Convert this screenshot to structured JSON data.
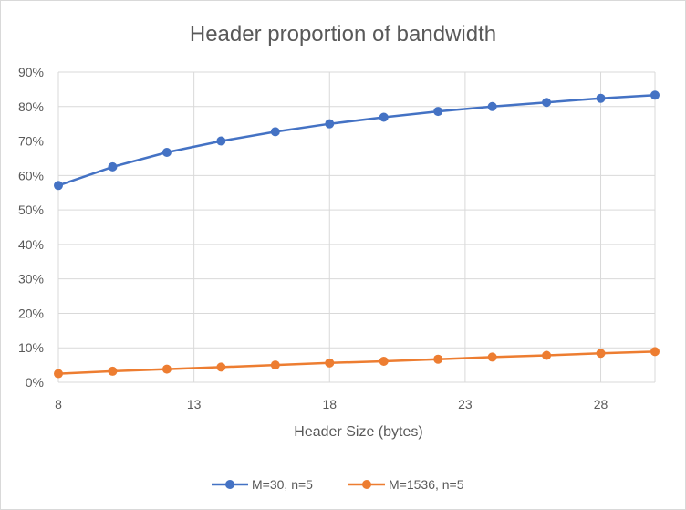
{
  "chart_data": {
    "type": "line",
    "title": "Header proportion of bandwidth",
    "xlabel": "Header Size (bytes)",
    "ylabel": "",
    "xlim": [
      8,
      30
    ],
    "ylim": [
      0,
      90
    ],
    "x_ticks": [
      8,
      13,
      18,
      23,
      28
    ],
    "y_ticks": [
      0,
      10,
      20,
      30,
      40,
      50,
      60,
      70,
      80,
      90
    ],
    "y_tick_labels": [
      "0%",
      "10%",
      "20%",
      "30%",
      "40%",
      "50%",
      "60%",
      "70%",
      "80%",
      "90%"
    ],
    "grid": true,
    "legend_position": "bottom",
    "x": [
      8,
      10,
      12,
      14,
      16,
      18,
      20,
      22,
      24,
      26,
      28,
      30
    ],
    "series": [
      {
        "name": "M=30, n=5",
        "color": "#4472c4",
        "values": [
          57.1,
          62.5,
          66.7,
          70.0,
          72.7,
          75.0,
          76.9,
          78.6,
          80.0,
          81.2,
          82.4,
          83.3
        ]
      },
      {
        "name": "M=1536, n=5",
        "color": "#ed7d31",
        "values": [
          2.5,
          3.2,
          3.8,
          4.4,
          5.0,
          5.6,
          6.1,
          6.7,
          7.3,
          7.8,
          8.4,
          8.9
        ]
      }
    ]
  }
}
